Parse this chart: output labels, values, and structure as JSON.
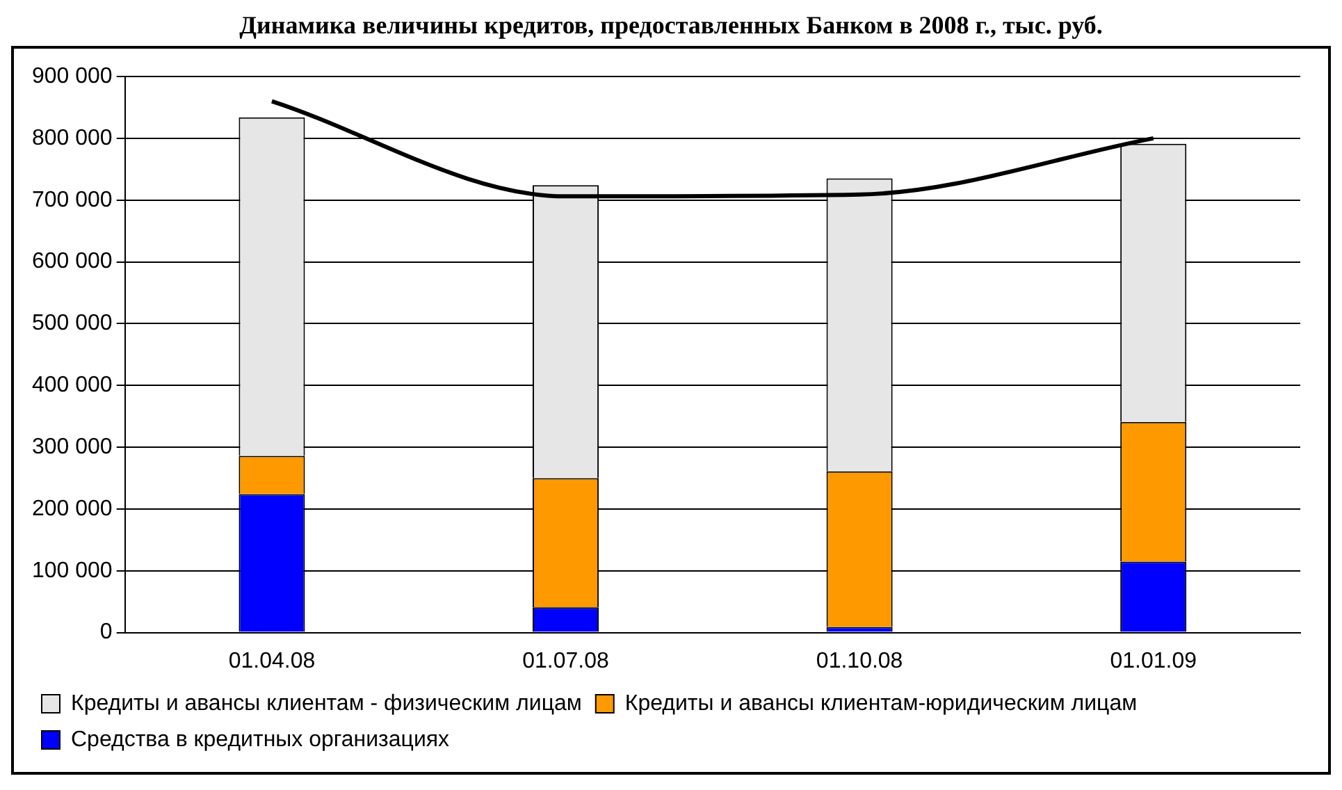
{
  "chart_data": {
    "type": "bar",
    "title": "Динамика величины кредитов, предоставленных Банком в 2008 г., тыс. руб.",
    "stacked": true,
    "categories": [
      "01.04.08",
      "01.07.08",
      "01.10.08",
      "01.01.09"
    ],
    "series": [
      {
        "name": "Средства в кредитных организациях",
        "color": "#0000ff",
        "values": [
          224000,
          41000,
          9000,
          115000
        ]
      },
      {
        "name": "Кредиты и авансы клиентам-юридическим лицам",
        "color": "#ff9900",
        "values": [
          62000,
          209000,
          252000,
          226000
        ]
      },
      {
        "name": "Кредиты и авансы клиентам - физическим лицам",
        "color": "#e6e6e6",
        "values": [
          548000,
          474000,
          474000,
          450000
        ]
      },
      {
        "type": "line",
        "color": "#000000",
        "x": [
          "01.04.08",
          "01.07.08",
          "01.10.08",
          "01.01.09"
        ],
        "values": [
          860000,
          706000,
          709000,
          800000
        ]
      }
    ],
    "ylim": [
      0,
      900000
    ],
    "yticks": [
      {
        "value": 0,
        "label": "0"
      },
      {
        "value": 100000,
        "label": "100 000"
      },
      {
        "value": 200000,
        "label": "200 000"
      },
      {
        "value": 300000,
        "label": "300 000"
      },
      {
        "value": 400000,
        "label": "400 000"
      },
      {
        "value": 500000,
        "label": "500 000"
      },
      {
        "value": 600000,
        "label": "600 000"
      },
      {
        "value": 700000,
        "label": "700 000"
      },
      {
        "value": 800000,
        "label": "800 000"
      },
      {
        "value": 900000,
        "label": "900 000"
      }
    ],
    "grid": "y",
    "legend": "bottom",
    "marker": "none"
  }
}
